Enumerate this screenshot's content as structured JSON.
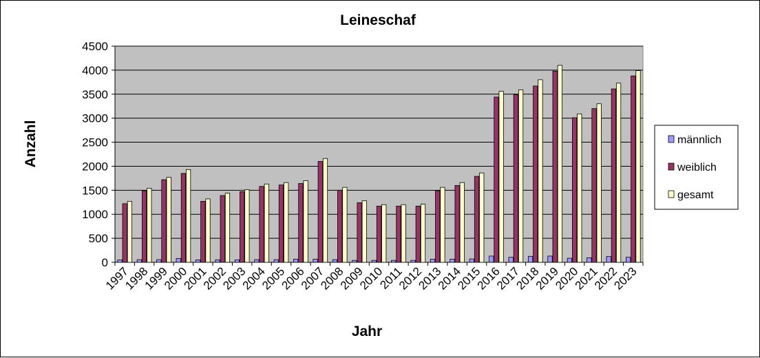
{
  "chart_data": {
    "type": "bar",
    "title": "Leineschaf",
    "xlabel": "Jahr",
    "ylabel": "Anzahl",
    "ylim": [
      0,
      4500
    ],
    "yticks": [
      0,
      500,
      1000,
      1500,
      2000,
      2500,
      3000,
      3500,
      4000,
      4500
    ],
    "grid": true,
    "legend_position": "right",
    "categories": [
      "1997",
      "1998",
      "1999",
      "2000",
      "2001",
      "2002",
      "2003",
      "2004",
      "2005",
      "2006",
      "2007",
      "2008",
      "2009",
      "2010",
      "2011",
      "2012",
      "2013",
      "2014",
      "2015",
      "2016",
      "2017",
      "2018",
      "2019",
      "2020",
      "2021",
      "2022",
      "2023"
    ],
    "series": [
      {
        "name": "männlich",
        "color": "#9999ff",
        "values": [
          50,
          55,
          55,
          80,
          50,
          50,
          50,
          55,
          55,
          65,
          65,
          55,
          40,
          40,
          40,
          40,
          65,
          65,
          70,
          130,
          105,
          125,
          130,
          85,
          95,
          120,
          105
        ]
      },
      {
        "name": "weiblich",
        "color": "#993366",
        "values": [
          1220,
          1490,
          1720,
          1850,
          1270,
          1390,
          1470,
          1580,
          1610,
          1640,
          2100,
          1500,
          1240,
          1170,
          1170,
          1170,
          1490,
          1600,
          1790,
          3440,
          3490,
          3670,
          3980,
          3010,
          3200,
          3610,
          3880
        ]
      },
      {
        "name": "gesamt",
        "color": "#ffffcc",
        "values": [
          1270,
          1540,
          1770,
          1930,
          1320,
          1440,
          1510,
          1630,
          1660,
          1700,
          2160,
          1560,
          1280,
          1200,
          1200,
          1210,
          1560,
          1660,
          1860,
          3560,
          3590,
          3800,
          4100,
          3090,
          3300,
          3730,
          3990
        ]
      }
    ]
  },
  "colors": {
    "plot_background": "#c0c0c0",
    "gridline": "#000000",
    "bar_outline": "#000000"
  }
}
